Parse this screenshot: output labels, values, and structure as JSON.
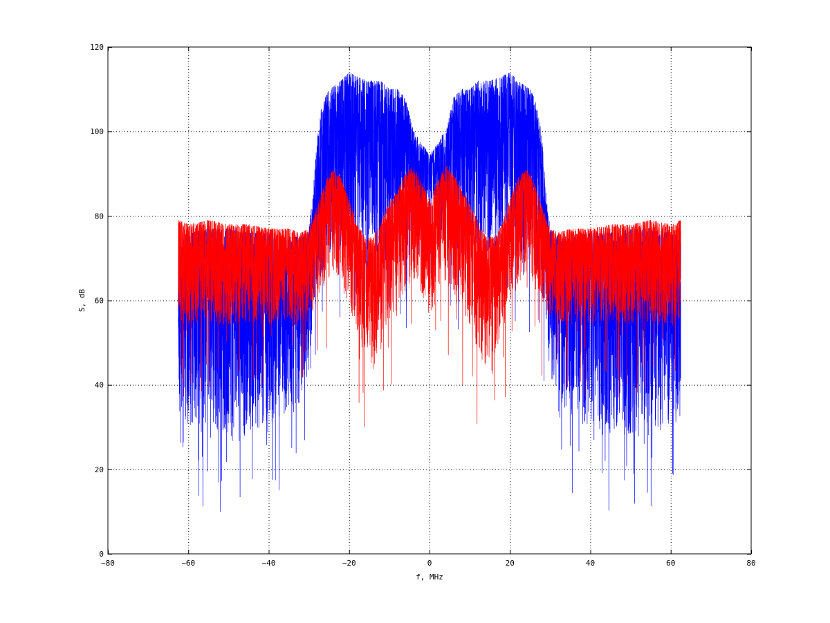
{
  "chart_data": {
    "type": "line",
    "title": "",
    "xlabel": "f, MHz",
    "ylabel": "S, dB",
    "xlim": [
      -80,
      80
    ],
    "ylim": [
      0,
      120
    ],
    "x_ticks": [
      -80,
      -60,
      -40,
      -20,
      0,
      20,
      40,
      60,
      80
    ],
    "y_ticks": [
      0,
      20,
      40,
      60,
      80,
      100,
      120
    ],
    "grid": true,
    "grid_style": "dotted",
    "legend": "none",
    "series": [
      {
        "color": "#0000ff",
        "envelope": {
          "x": [
            -62.5,
            -60,
            -55,
            -50,
            -45,
            -40,
            -35,
            -32,
            -30,
            -29,
            -28,
            -27,
            -26,
            -25,
            -22,
            -20,
            -18,
            -15,
            -12,
            -10,
            -8,
            -6,
            -5,
            -4,
            -3,
            -2,
            -1,
            0,
            1,
            2,
            3,
            4,
            5,
            6,
            8,
            10,
            12,
            15,
            18,
            20,
            22,
            25,
            26,
            27,
            28,
            29,
            30,
            32,
            35,
            40,
            45,
            50,
            55,
            60,
            62.5
          ],
          "upper": [
            75,
            76,
            77,
            77,
            76,
            76,
            75,
            75,
            77,
            85,
            98,
            105,
            108,
            110,
            112,
            114,
            113,
            112,
            112,
            110,
            110,
            108,
            104,
            100,
            99,
            97,
            96,
            94,
            96,
            97,
            99,
            100,
            104,
            108,
            110,
            110,
            112,
            112,
            113,
            114,
            112,
            110,
            108,
            105,
            98,
            85,
            77,
            75,
            75,
            76,
            76,
            77,
            77,
            76,
            75
          ],
          "lower": [
            32,
            30,
            28,
            26,
            28,
            30,
            32,
            36,
            42,
            55,
            62,
            66,
            68,
            70,
            72,
            70,
            72,
            72,
            70,
            69,
            68,
            68,
            70,
            72,
            74,
            78,
            82,
            84,
            82,
            78,
            74,
            72,
            70,
            68,
            68,
            69,
            70,
            72,
            72,
            70,
            72,
            70,
            68,
            66,
            62,
            55,
            42,
            36,
            32,
            30,
            28,
            26,
            28,
            30,
            32
          ]
        }
      },
      {
        "color": "#ff0000",
        "envelope": {
          "x": [
            -62.5,
            -60,
            -55,
            -50,
            -45,
            -40,
            -35,
            -32,
            -30,
            -28,
            -26,
            -24,
            -22,
            -20,
            -18,
            -16,
            -14,
            -12,
            -10,
            -8,
            -6,
            -4,
            -2,
            -1,
            0,
            1,
            2,
            4,
            6,
            8,
            10,
            12,
            14,
            16,
            18,
            20,
            22,
            24,
            26,
            28,
            30,
            32,
            35,
            40,
            45,
            50,
            55,
            60,
            62.5
          ],
          "upper": [
            79,
            78,
            79,
            78,
            78,
            77,
            77,
            76,
            77,
            82,
            88,
            91,
            89,
            84,
            78,
            75,
            75,
            79,
            83,
            86,
            90,
            92,
            88,
            86,
            84,
            86,
            88,
            92,
            90,
            86,
            83,
            79,
            75,
            75,
            78,
            84,
            89,
            91,
            88,
            82,
            77,
            76,
            77,
            77,
            78,
            78,
            79,
            78,
            79
          ],
          "lower": [
            55,
            54,
            55,
            54,
            55,
            54,
            54,
            54,
            55,
            60,
            64,
            66,
            64,
            58,
            52,
            46,
            44,
            48,
            54,
            58,
            62,
            64,
            62,
            58,
            56,
            58,
            62,
            64,
            62,
            58,
            54,
            48,
            44,
            46,
            52,
            58,
            64,
            66,
            64,
            60,
            55,
            54,
            54,
            54,
            55,
            54,
            55,
            54,
            55
          ]
        }
      }
    ]
  }
}
